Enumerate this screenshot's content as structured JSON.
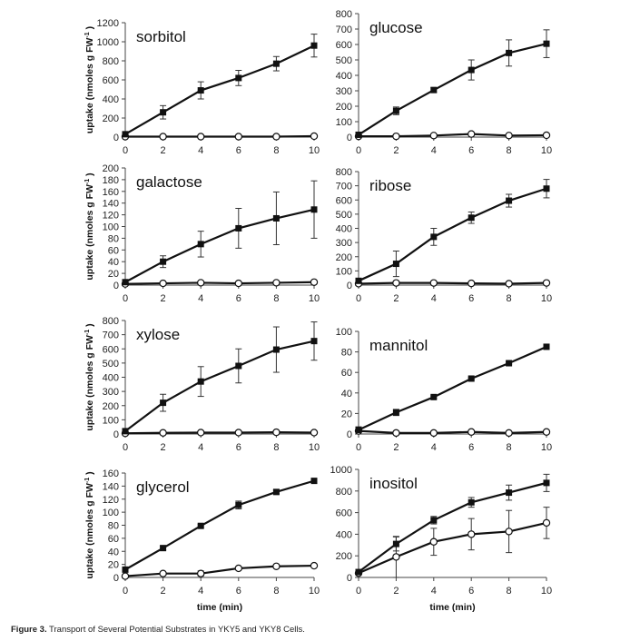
{
  "caption": {
    "label": "Figure 3.",
    "text": " Transport of Several Potential Substrates in YKY5 and YKY8 Cells."
  },
  "chart_data": [
    {
      "type": "line",
      "title": "sorbitol",
      "xlabel": "",
      "ylabel": "uptake (nmoles g FW",
      "ylabel_sup": "-1",
      "x": [
        0,
        2,
        4,
        6,
        8,
        10
      ],
      "xticks": [
        "0",
        "2",
        "4",
        "6",
        "8",
        "10"
      ],
      "ylim": [
        0,
        1200
      ],
      "ystep": 200,
      "series": [
        {
          "marker": "filled-square",
          "values": [
            30,
            260,
            490,
            620,
            770,
            960
          ],
          "errors": [
            0,
            70,
            90,
            80,
            75,
            120
          ]
        },
        {
          "marker": "open-circle",
          "values": [
            5,
            5,
            5,
            5,
            5,
            10
          ],
          "errors": [
            0,
            0,
            0,
            0,
            0,
            0
          ]
        }
      ]
    },
    {
      "type": "line",
      "title": "glucose",
      "xlabel": "",
      "ylabel": "",
      "x": [
        0,
        2,
        4,
        6,
        8,
        10
      ],
      "xticks": [
        "0",
        "2",
        "4",
        "6",
        "8",
        "10"
      ],
      "ylim": [
        0,
        800
      ],
      "ystep": 100,
      "series": [
        {
          "marker": "filled-square",
          "values": [
            15,
            170,
            305,
            435,
            545,
            605
          ],
          "errors": [
            0,
            25,
            15,
            65,
            85,
            90
          ]
        },
        {
          "marker": "open-circle",
          "values": [
            5,
            5,
            10,
            20,
            10,
            12
          ],
          "errors": [
            0,
            0,
            0,
            0,
            0,
            0
          ]
        }
      ]
    },
    {
      "type": "line",
      "title": "galactose",
      "xlabel": "",
      "ylabel": "uptake (nmoles g FW",
      "ylabel_sup": "-1",
      "x": [
        0,
        2,
        4,
        6,
        8,
        10
      ],
      "xticks": [
        "0",
        "2",
        "4",
        "6",
        "8",
        "10"
      ],
      "ylim": [
        0,
        200
      ],
      "ystep": 20,
      "series": [
        {
          "marker": "filled-square",
          "values": [
            5,
            40,
            70,
            97,
            114,
            129
          ],
          "errors": [
            0,
            10,
            22,
            34,
            45,
            49
          ]
        },
        {
          "marker": "open-circle",
          "values": [
            2,
            3,
            4,
            3,
            4,
            5
          ],
          "errors": [
            0,
            0,
            0,
            0,
            0,
            0
          ]
        }
      ]
    },
    {
      "type": "line",
      "title": "ribose",
      "xlabel": "",
      "ylabel": "",
      "x": [
        0,
        2,
        4,
        6,
        8,
        10
      ],
      "xticks": [
        "0",
        "2",
        "4",
        "6",
        "8",
        "10"
      ],
      "ylim": [
        0,
        800
      ],
      "ystep": 100,
      "series": [
        {
          "marker": "filled-square",
          "values": [
            30,
            150,
            340,
            475,
            595,
            680
          ],
          "errors": [
            0,
            90,
            60,
            40,
            45,
            65
          ]
        },
        {
          "marker": "open-circle",
          "values": [
            10,
            15,
            15,
            12,
            10,
            15
          ],
          "errors": [
            0,
            0,
            0,
            0,
            0,
            0
          ]
        }
      ]
    },
    {
      "type": "line",
      "title": "xylose",
      "xlabel": "",
      "ylabel": "uptake (nmoles g FW",
      "ylabel_sup": "-1",
      "x": [
        0,
        2,
        4,
        6,
        8,
        10
      ],
      "xticks": [
        "0",
        "2",
        "4",
        "6",
        "8",
        "10"
      ],
      "ylim": [
        0,
        800
      ],
      "ystep": 100,
      "series": [
        {
          "marker": "filled-square",
          "values": [
            20,
            220,
            370,
            480,
            595,
            655
          ],
          "errors": [
            0,
            60,
            105,
            120,
            160,
            135
          ]
        },
        {
          "marker": "open-circle",
          "values": [
            5,
            8,
            10,
            10,
            12,
            10
          ],
          "errors": [
            0,
            0,
            0,
            0,
            0,
            0
          ]
        }
      ]
    },
    {
      "type": "line",
      "title": "mannitol",
      "xlabel": "",
      "ylabel": "",
      "x": [
        0,
        2,
        4,
        6,
        8,
        10
      ],
      "xticks": [
        "0",
        "2",
        "4",
        "6",
        "8",
        "10"
      ],
      "ylim": [
        0,
        100
      ],
      "ystep": 20,
      "series": [
        {
          "marker": "filled-square",
          "values": [
            4,
            21,
            36,
            54,
            69,
            85
          ],
          "errors": [
            0,
            3,
            1,
            1,
            1,
            1
          ]
        },
        {
          "marker": "open-circle",
          "values": [
            3,
            1,
            1,
            2,
            1,
            2
          ],
          "errors": [
            4,
            0,
            0,
            0,
            0,
            0
          ]
        }
      ]
    },
    {
      "type": "line",
      "title": "glycerol",
      "xlabel": "time (min)",
      "ylabel": "uptake (nmoles g FW",
      "ylabel_sup": "-1",
      "x": [
        0,
        2,
        4,
        6,
        8,
        10
      ],
      "xticks": [
        "0",
        "2",
        "4",
        "6",
        "8",
        "10"
      ],
      "ylim": [
        0,
        160
      ],
      "ystep": 20,
      "series": [
        {
          "marker": "filled-square",
          "values": [
            12,
            45,
            79,
            111,
            131,
            148
          ],
          "errors": [
            0,
            3,
            2,
            6,
            3,
            2
          ]
        },
        {
          "marker": "open-circle",
          "values": [
            2,
            6,
            6,
            14,
            17,
            18
          ],
          "errors": [
            0,
            0,
            4,
            0,
            0,
            2
          ]
        }
      ]
    },
    {
      "type": "line",
      "title": "inositol",
      "xlabel": "time (min)",
      "ylabel": "",
      "x": [
        0,
        2,
        4,
        6,
        8,
        10
      ],
      "xticks": [
        "0",
        "2",
        "4",
        "6",
        "8",
        "10"
      ],
      "ylim": [
        0,
        1000
      ],
      "ystep": 200,
      "series": [
        {
          "marker": "filled-square",
          "values": [
            50,
            310,
            530,
            695,
            785,
            875
          ],
          "errors": [
            0,
            65,
            35,
            45,
            70,
            80
          ]
        },
        {
          "marker": "open-circle",
          "values": [
            40,
            190,
            330,
            400,
            425,
            505
          ],
          "errors": [
            0,
            190,
            125,
            145,
            195,
            145
          ]
        }
      ]
    }
  ]
}
